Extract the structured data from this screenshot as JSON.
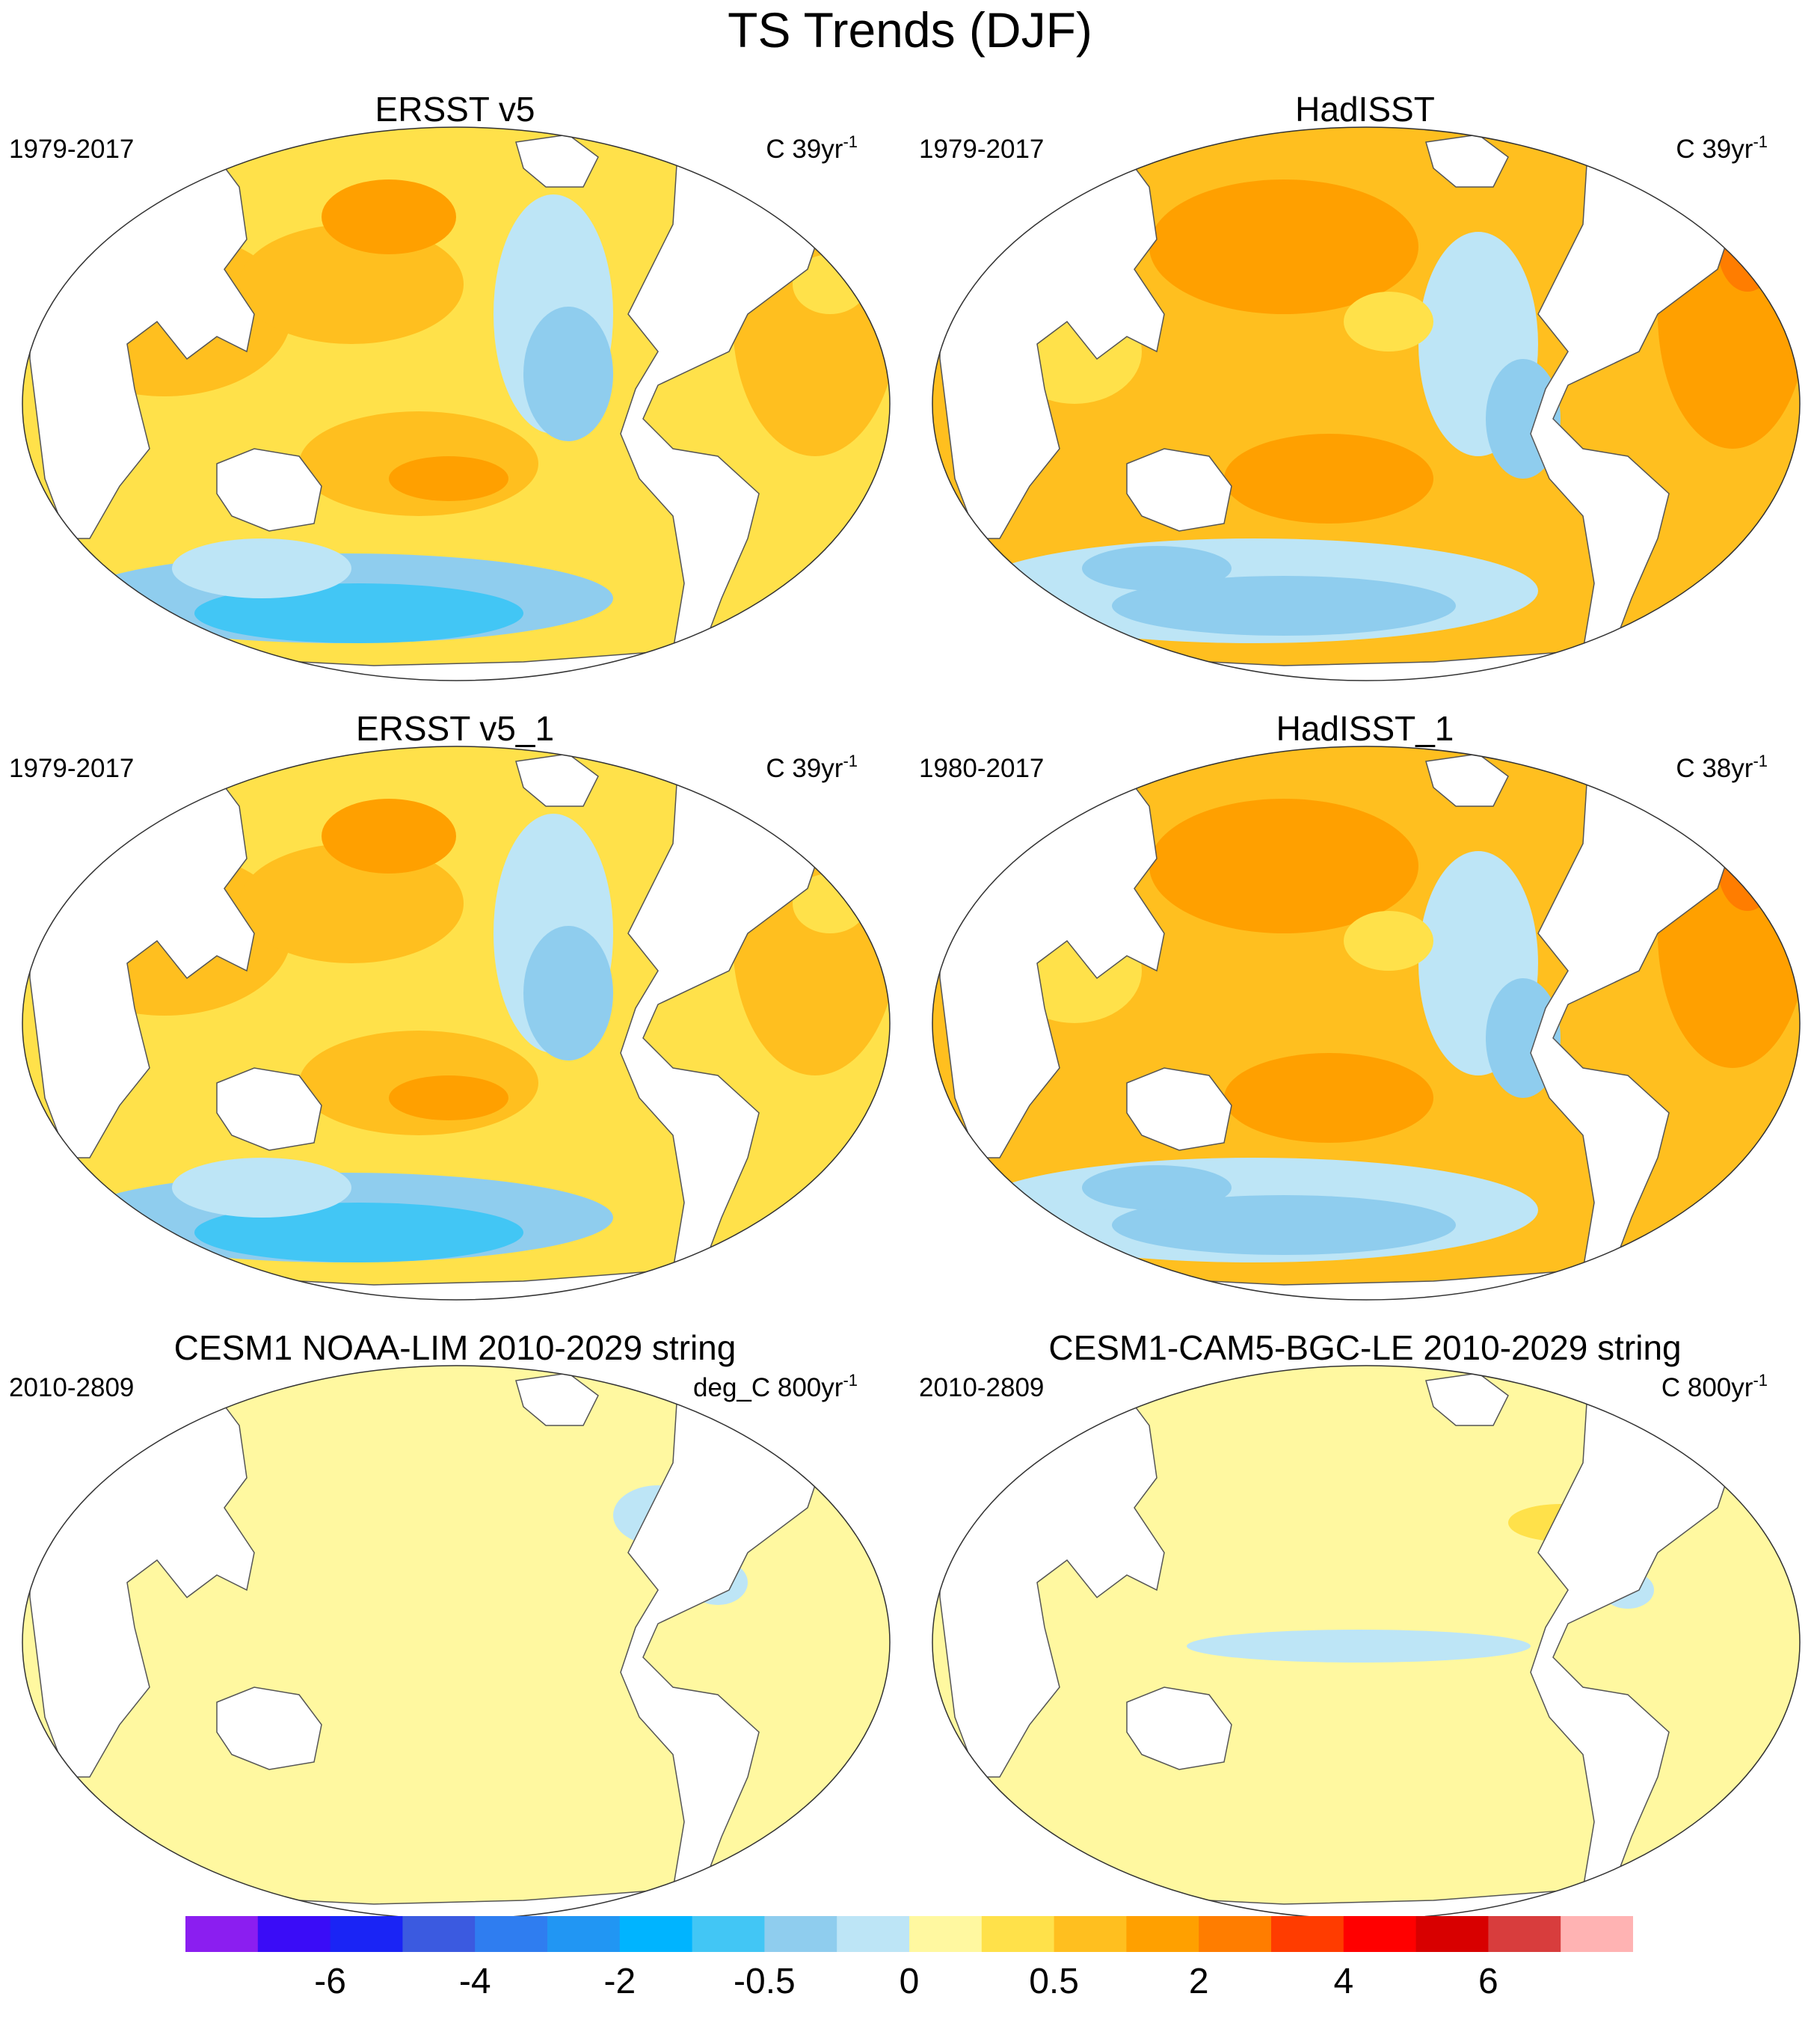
{
  "main_title": "TS Trends (DJF)",
  "panels": [
    {
      "title": "ERSST v5",
      "years": "1979-2017",
      "units_prefix": "C 39yr",
      "units_exp": "-1",
      "pattern": "obs_smooth"
    },
    {
      "title": "HadISST",
      "years": "1979-2017",
      "units_prefix": "C 39yr",
      "units_exp": "-1",
      "pattern": "obs_noisy"
    },
    {
      "title": "ERSST v5_1",
      "years": "1979-2017",
      "units_prefix": "C 39yr",
      "units_exp": "-1",
      "pattern": "obs_smooth"
    },
    {
      "title": "HadISST_1",
      "years": "1980-2017",
      "units_prefix": "C 38yr",
      "units_exp": "-1",
      "pattern": "obs_noisy"
    },
    {
      "title": "CESM1 NOAA-LIM 2010-2029 string",
      "years": "2010-2809",
      "units_prefix": "deg_C 800yr",
      "units_exp": "-1",
      "pattern": "model_flat"
    },
    {
      "title": "CESM1-CAM5-BGC-LE 2010-2029 string",
      "years": "2010-2809",
      "units_prefix": "C 800yr",
      "units_exp": "-1",
      "pattern": "model_band"
    }
  ],
  "colorbar": {
    "colors": [
      "#8b1ef0",
      "#3a0cf7",
      "#1a24f5",
      "#3b5ae0",
      "#2f7df0",
      "#2196f3",
      "#00b4ff",
      "#42c6f5",
      "#8fcdee",
      "#bde5f6",
      "#fff8a0",
      "#ffe14a",
      "#ffbf1f",
      "#ffa000",
      "#ff7d00",
      "#ff3c00",
      "#ff0000",
      "#d80000",
      "#d83d3d",
      "#ffb3b3"
    ],
    "labels": [
      {
        "text": "-6",
        "boundary": 2
      },
      {
        "text": "-4",
        "boundary": 4
      },
      {
        "text": "-2",
        "boundary": 6
      },
      {
        "text": "-0.5",
        "boundary": 8
      },
      {
        "text": "0",
        "boundary": 10
      },
      {
        "text": "0.5",
        "boundary": 12
      },
      {
        "text": "2",
        "boundary": 14
      },
      {
        "text": "4",
        "boundary": 16
      },
      {
        "text": "6",
        "boundary": 18
      }
    ]
  }
}
